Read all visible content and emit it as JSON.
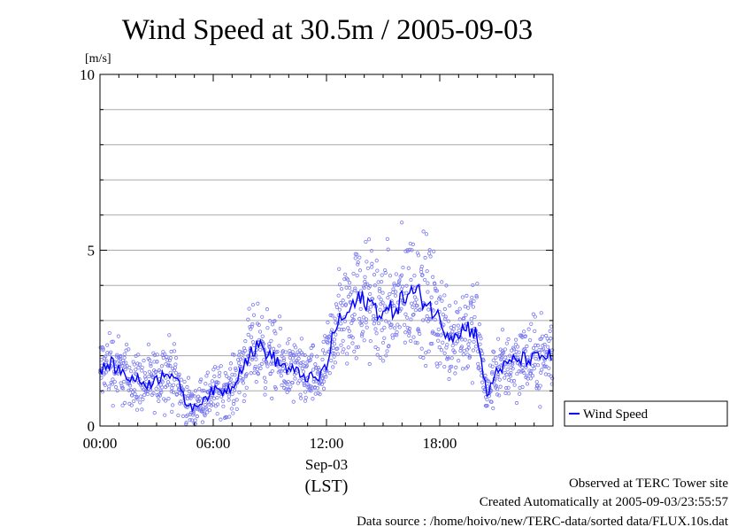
{
  "chart_data": {
    "type": "scatter",
    "title": "Wind Speed at 30.5m / 2005-09-03",
    "ylabel": "[m/s]",
    "xlabel": "(LST)",
    "date_label": "Sep-03",
    "ylim": [
      0,
      10
    ],
    "xlim_hours": [
      0,
      24
    ],
    "y_ticks": [
      "0",
      "5",
      "10"
    ],
    "x_ticks": [
      "00:00",
      "06:00",
      "12:00",
      "18:00"
    ],
    "grid": true,
    "legend_position": "right",
    "series": [
      {
        "name": "Wind Speed",
        "color": "#0000ff",
        "scatter_color": "#7777ee",
        "mean_line_hourly": {
          "x_hours": [
            0.0,
            0.5,
            1.0,
            1.5,
            2.0,
            2.5,
            3.0,
            3.5,
            4.0,
            4.5,
            5.0,
            5.5,
            6.0,
            6.5,
            7.0,
            7.5,
            8.0,
            8.5,
            9.0,
            9.5,
            10.0,
            10.5,
            11.0,
            11.5,
            12.0,
            12.5,
            13.0,
            13.5,
            14.0,
            14.5,
            15.0,
            15.5,
            16.0,
            16.5,
            17.0,
            17.5,
            18.0,
            18.5,
            19.0,
            19.5,
            20.0,
            20.5,
            21.0,
            21.5,
            22.0,
            22.5,
            23.0,
            23.5
          ],
          "y": [
            1.5,
            1.8,
            1.6,
            1.4,
            1.3,
            1.2,
            1.3,
            1.6,
            1.4,
            0.7,
            0.5,
            0.8,
            1.0,
            1.0,
            1.1,
            1.7,
            2.1,
            2.3,
            2.0,
            1.8,
            1.6,
            1.5,
            1.4,
            1.3,
            1.7,
            2.9,
            3.1,
            3.5,
            3.6,
            3.4,
            3.2,
            3.3,
            3.6,
            3.8,
            3.7,
            3.4,
            3.0,
            2.6,
            2.7,
            2.8,
            2.6,
            0.8,
            1.6,
            1.7,
            1.9,
            1.9,
            1.9,
            2.0
          ]
        }
      }
    ]
  },
  "footer": {
    "line1": "Observed at TERC Tower site",
    "line2": "Created Automatically at 2005-09-03/23:55:57",
    "line3": "Data source : /home/hoivo/new/TERC-data/sorted  data/FLUX.10s.dat"
  }
}
